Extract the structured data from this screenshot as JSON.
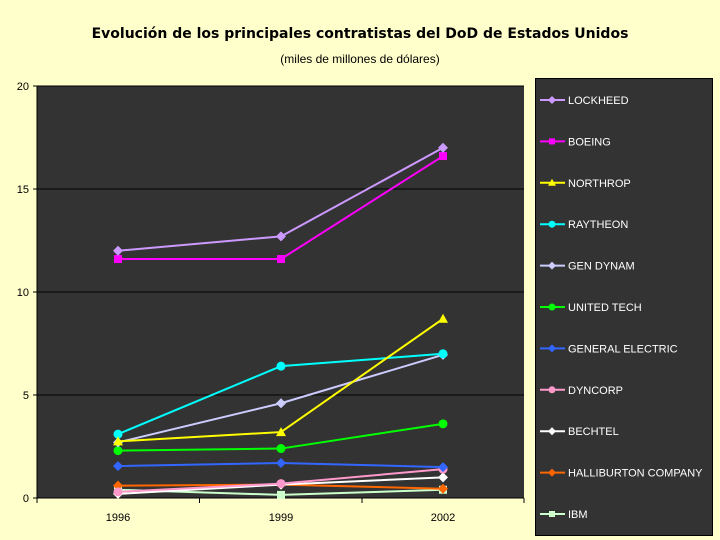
{
  "chart_data": {
    "type": "line",
    "title": "Evolución de los principales contratistas del DoD de Estados Unidos",
    "subtitle": "(miles de millones de dólares)",
    "xlabel": "",
    "ylabel": "",
    "categories": [
      "1996",
      "1999",
      "2002"
    ],
    "ylim": [
      0,
      20
    ],
    "yticks": [
      "0",
      "5",
      "10",
      "15",
      "20"
    ],
    "grid": true,
    "legend_position": "right",
    "series": [
      {
        "name": "LOCKHEED",
        "color": "#CC99FF",
        "marker": "diamond",
        "values": [
          12.0,
          12.7,
          17.0
        ]
      },
      {
        "name": "BOEING",
        "color": "#FF00FF",
        "marker": "square",
        "values": [
          11.6,
          11.6,
          16.6
        ]
      },
      {
        "name": "NORTHROP",
        "color": "#FFFF00",
        "marker": "triangle",
        "values": [
          2.75,
          3.2,
          8.7
        ]
      },
      {
        "name": "RAYTHEON",
        "color": "#00FFFF",
        "marker": "circle",
        "values": [
          3.1,
          6.4,
          7.0
        ]
      },
      {
        "name": "GEN DYNAM",
        "color": "#CCCCFF",
        "marker": "diamond",
        "values": [
          2.7,
          4.6,
          6.95
        ]
      },
      {
        "name": "UNITED TECH",
        "color": "#00FF00",
        "marker": "circle",
        "values": [
          2.3,
          2.4,
          3.6
        ]
      },
      {
        "name": "GENERAL ELECTRIC",
        "color": "#3366FF",
        "marker": "diamond",
        "values": [
          1.55,
          1.7,
          1.5
        ]
      },
      {
        "name": "DYNCORP",
        "color": "#FF99CC",
        "marker": "circle",
        "values": [
          0.3,
          0.7,
          1.4
        ]
      },
      {
        "name": "BECHTEL",
        "color": "#FFFFFF",
        "marker": "diamond",
        "values": [
          0.2,
          0.65,
          1.0
        ]
      },
      {
        "name": "HALLIBURTON COMPANY",
        "color": "#FF6600",
        "marker": "diamond",
        "values": [
          0.6,
          0.65,
          0.45
        ]
      },
      {
        "name": "IBM",
        "color": "#CCFFCC",
        "marker": "square",
        "values": [
          0.4,
          0.15,
          0.4
        ]
      }
    ]
  }
}
